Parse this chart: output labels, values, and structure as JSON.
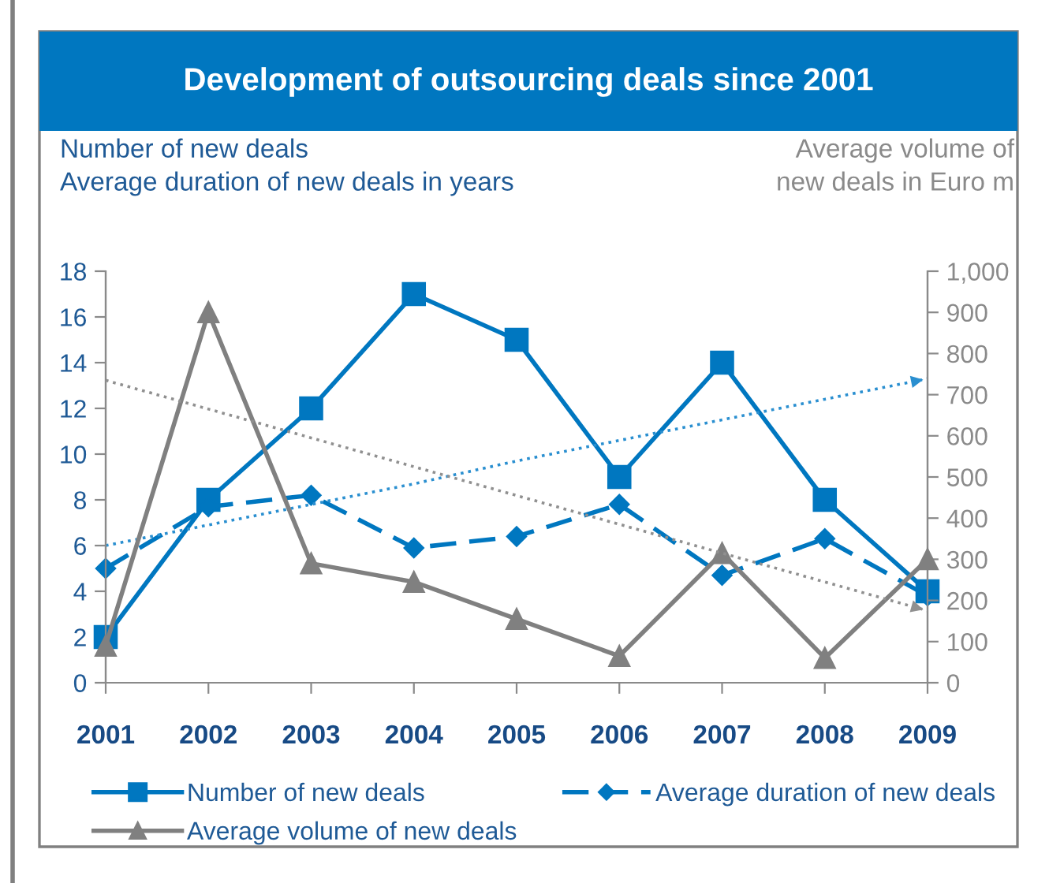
{
  "chart_data": {
    "type": "line",
    "title": "Development of outsourcing deals since 2001",
    "ylabel": "Number of new deals\nAverage duration of new deals in years",
    "y2label": "Average volume of\nnew deals in Euro m",
    "categories": [
      "2001",
      "2002",
      "2003",
      "2004",
      "2005",
      "2006",
      "2007",
      "2008",
      "2009"
    ],
    "series": [
      {
        "name": "Number of new deals",
        "color": "#0077c0",
        "marker": "square",
        "line_style": "solid",
        "values": [
          2,
          8,
          12,
          17,
          15,
          9,
          14,
          8,
          4
        ]
      },
      {
        "name": "Average duration of new deals",
        "color": "#0077c0",
        "marker": "diamond",
        "line_style": "dashed",
        "values": [
          5,
          7.7,
          8.2,
          5.9,
          6.4,
          7.8,
          4.7,
          6.3,
          3.8
        ]
      },
      {
        "name": "Average volume of new deals",
        "color": "#808080",
        "marker": "triangle",
        "line_style": "solid",
        "axis": "y2",
        "values": [
          90,
          900,
          290,
          245,
          155,
          65,
          315,
          60,
          300
        ]
      },
      {
        "color": "#2a8fd0",
        "marker": "none",
        "line_style": "dotted",
        "values": [
          6,
          6.9,
          7.8,
          8.7,
          9.7,
          10.6,
          11.5,
          12.4,
          13.3
        ]
      },
      {
        "color": "#909090",
        "marker": "none",
        "line_style": "dotted",
        "axis": "y2",
        "values": [
          735,
          665,
          595,
          525,
          455,
          385,
          315,
          245,
          175
        ]
      }
    ],
    "ylim": [
      0,
      18
    ],
    "yticks": [
      0,
      2,
      4,
      6,
      8,
      10,
      12,
      14,
      16,
      18
    ],
    "y2lim": [
      0,
      1000
    ],
    "y2ticks": [
      0,
      100,
      200,
      300,
      400,
      500,
      600,
      700,
      800,
      900,
      {
        "value": 1000,
        "label": "1,000"
      }
    ],
    "grid": false,
    "legend": "bottom"
  }
}
